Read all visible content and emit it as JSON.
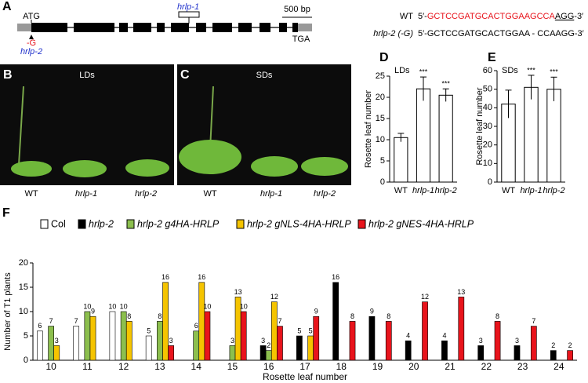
{
  "panel_a": {
    "label": "A",
    "atg": "ATG",
    "deletion": "-G",
    "allele_2": "hrlp-2",
    "allele_1": "hrlp-1",
    "scale": "500 bp",
    "tga": "TGA",
    "wt_label": "WT",
    "wt_prefix": "5′-",
    "wt_target": "GCTCCGATGCACTGGAAGCCA",
    "wt_pam": "AGG",
    "wt_suffix": "-3′",
    "mut_label": "hrlp-2 (-G)",
    "mut_seq": "5′-GCTCCGATGCACTGGAA - CCAAGG-3′"
  },
  "panel_b": {
    "label": "B",
    "title": "LDs",
    "plants": [
      "WT",
      "hrlp-1",
      "hrlp-2"
    ]
  },
  "panel_c": {
    "label": "C",
    "title": "SDs",
    "plants": [
      "WT",
      "hrlp-1",
      "hrlp-2"
    ]
  },
  "chart_data": [
    {
      "type": "bar",
      "panel_label": "D",
      "title": "LDs",
      "y_label": "Rosette leaf number",
      "categories": [
        "WT",
        "hrlp-1",
        "hrlp-2"
      ],
      "values": [
        10.5,
        22,
        20.5
      ],
      "errors": [
        1,
        2.8,
        1.5
      ],
      "annotations": [
        null,
        "***",
        "***"
      ],
      "color": "#ffffff",
      "ylim": [
        0,
        25
      ],
      "yticks": [
        0,
        5,
        10,
        15,
        20,
        25
      ]
    },
    {
      "type": "bar",
      "panel_label": "E",
      "title": "SDs",
      "y_label": "Rosette leaf number",
      "categories": [
        "WT",
        "hrlp-1",
        "hrlp-2"
      ],
      "values": [
        42,
        51,
        50
      ],
      "errors": [
        7.5,
        6.5,
        6.5
      ],
      "annotations": [
        null,
        "***",
        "***"
      ],
      "color": "#ffffff",
      "ylim": [
        0,
        60
      ],
      "yticks": [
        0,
        10,
        20,
        30,
        40,
        50,
        60
      ]
    },
    {
      "type": "grouped_bar",
      "panel_label": "F",
      "y_label": "Number of T1 plants",
      "x_label": "Rosette leaf number",
      "categories": [
        "10",
        "11",
        "12",
        "13",
        "14",
        "15",
        "16",
        "17",
        "18",
        "19",
        "20",
        "21",
        "22",
        "23",
        "24"
      ],
      "series": [
        {
          "name": "Col",
          "color": "#ffffff",
          "values": [
            6,
            7,
            10,
            5,
            null,
            null,
            null,
            null,
            null,
            null,
            null,
            null,
            null,
            null,
            null
          ]
        },
        {
          "name": "hrlp-2",
          "color": "#000000",
          "values": [
            null,
            null,
            null,
            null,
            null,
            null,
            3,
            5,
            16,
            9,
            4,
            4,
            3,
            3,
            2
          ]
        },
        {
          "name": "hrlp-2 g4HA-HRLP",
          "color": "#8cbf4e",
          "values": [
            7,
            10,
            10,
            8,
            6,
            3,
            2,
            null,
            null,
            null,
            null,
            null,
            null,
            null,
            null
          ]
        },
        {
          "name": "hrlp-2 gNLS-4HA-HRLP",
          "color": "#f5c400",
          "values": [
            3,
            9,
            8,
            16,
            16,
            13,
            12,
            5,
            null,
            null,
            null,
            null,
            null,
            null,
            null
          ]
        },
        {
          "name": "hrlp-2 gNES-4HA-HRLP",
          "color": "#e8141c",
          "values": [
            null,
            null,
            null,
            3,
            10,
            10,
            7,
            9,
            8,
            8,
            12,
            13,
            8,
            7,
            2
          ]
        }
      ],
      "ylim": [
        0,
        20
      ],
      "yticks": [
        0,
        5,
        10,
        15,
        20
      ]
    }
  ]
}
